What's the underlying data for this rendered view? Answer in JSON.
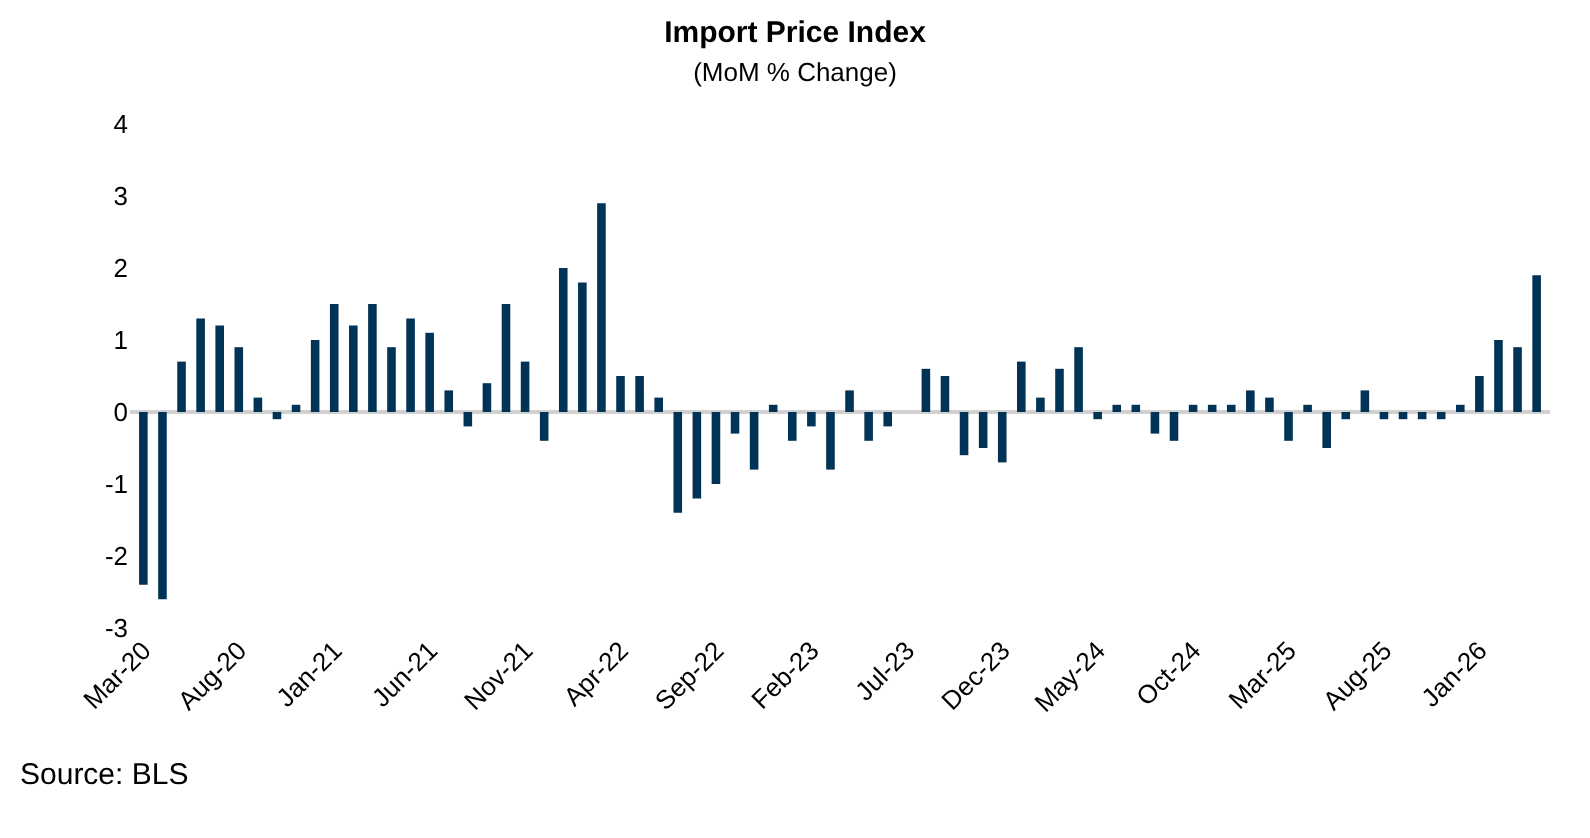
{
  "chart_data": {
    "type": "bar",
    "title": "Import Price Index",
    "subtitle": "(MoM % Change)",
    "categories": [
      "Mar-20",
      null,
      null,
      null,
      null,
      "Aug-20",
      null,
      null,
      null,
      null,
      "Jan-21",
      null,
      null,
      null,
      null,
      "Jun-21",
      null,
      null,
      null,
      null,
      "Nov-21",
      null,
      null,
      null,
      null,
      "Apr-22",
      null,
      null,
      null,
      null,
      "Sep-22",
      null,
      null,
      null,
      null,
      "Feb-23",
      null,
      null,
      null,
      null,
      "Jul-23",
      null,
      null,
      null,
      null,
      "Dec-23",
      null,
      null,
      null,
      null,
      "May-24",
      null,
      null,
      null,
      null,
      "Oct-24",
      null,
      null,
      null,
      null,
      "Mar-25",
      null,
      null,
      null,
      null,
      "Aug-25",
      null,
      null,
      null,
      null,
      "Jan-26",
      null,
      null,
      null
    ],
    "values": [
      -2.4,
      -2.6,
      0.7,
      1.3,
      1.2,
      0.9,
      0.2,
      -0.1,
      0.1,
      1.0,
      1.5,
      1.2,
      1.5,
      0.9,
      1.3,
      1.1,
      0.3,
      -0.2,
      0.4,
      1.5,
      0.7,
      -0.4,
      2.0,
      1.8,
      2.9,
      0.5,
      0.5,
      0.2,
      -1.4,
      -1.2,
      -1.0,
      -0.3,
      -0.8,
      0.1,
      -0.4,
      -0.2,
      -0.8,
      0.3,
      -0.4,
      -0.2,
      0,
      0.6,
      0.5,
      -0.6,
      -0.5,
      -0.7,
      0.7,
      0.2,
      0.6,
      0.9,
      -0.1,
      0.1,
      0.1,
      -0.3,
      -0.4,
      0.1,
      0.1,
      0.1,
      0.3,
      0.2,
      -0.4,
      0.1,
      -0.5,
      -0.1,
      0.3,
      -0.1,
      -0.1,
      -0.1,
      -0.1,
      0.1,
      0.5,
      1.0,
      0.9,
      1.9
    ],
    "color": "#003355",
    "ylim": [
      -3,
      4
    ],
    "yticks": [
      -3,
      -2,
      -1,
      0,
      1,
      2,
      3,
      4
    ],
    "grid": false,
    "legend": false,
    "ref_lines": [
      {
        "axis": "y",
        "value": 0,
        "color": "#d0d0d0"
      }
    ],
    "annotations": [
      "Source: BLS"
    ]
  }
}
